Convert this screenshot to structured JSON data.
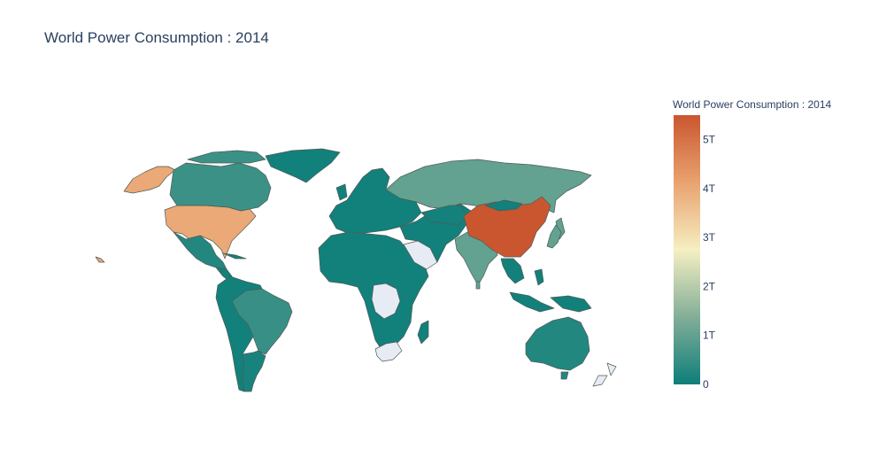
{
  "chart_data": {
    "type": "choropleth",
    "title": "World Power Consumption : 2014",
    "colorbar": {
      "title": "World Power Consumption : 2014",
      "range": [
        0,
        5500000000000
      ],
      "tick_values": [
        0,
        1000000000000,
        2000000000000,
        3000000000000,
        4000000000000,
        5000000000000
      ],
      "tick_labels": [
        "0",
        "1T",
        "2T",
        "3T",
        "4T",
        "5T"
      ],
      "colorscale": [
        "#0d7e7a",
        "#83ae98",
        "#f5efc2",
        "#e9a26f",
        "#c9562f"
      ]
    },
    "no_data_color": "#e6ebf4",
    "regions": [
      {
        "name": "China",
        "value": 5500000000000
      },
      {
        "name": "United States",
        "value": 4000000000000
      },
      {
        "name": "Russia",
        "value": 1000000000000
      },
      {
        "name": "India",
        "value": 1000000000000
      },
      {
        "name": "Japan",
        "value": 1000000000000
      },
      {
        "name": "Canada",
        "value": 550000000000
      },
      {
        "name": "Brazil",
        "value": 500000000000
      },
      {
        "name": "Australia",
        "value": 250000000000
      },
      {
        "name": "Mexico",
        "value": 260000000000
      },
      {
        "name": "Argentina",
        "value": 130000000000
      },
      {
        "name": "Kazakhstan",
        "value": 90000000000
      },
      {
        "name": "Saudi Arabia",
        "value": null
      },
      {
        "name": "Democratic Republic of the Congo",
        "value": null
      },
      {
        "name": "South Africa",
        "value": null
      },
      {
        "name": "New Zealand",
        "value": null
      }
    ]
  }
}
